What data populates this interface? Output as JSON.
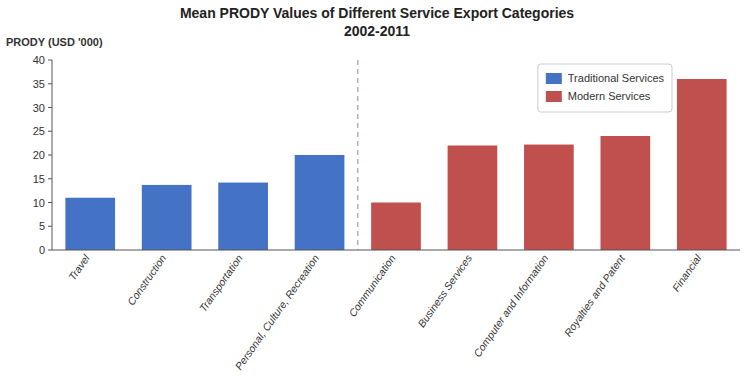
{
  "chart_data": {
    "type": "bar",
    "title": "Mean PRODY  Values of Different Service Export Categories",
    "subtitle": "2002-2011",
    "ylabel": "PRODY (USD '000)",
    "categories": [
      "Travel",
      "Construction",
      "Transportation",
      "Personal, Culture,  Recreation",
      "Communication",
      "Business Services",
      "Computer and Information",
      "Royalties and Patent",
      "Financial"
    ],
    "series": [
      {
        "name": "Traditional Services",
        "color": "#4472C4",
        "values": [
          11,
          13.7,
          14.2,
          20,
          null,
          null,
          null,
          null,
          null
        ]
      },
      {
        "name": "Modern Services",
        "color": "#C0504D",
        "values": [
          null,
          null,
          null,
          null,
          10,
          22,
          22.2,
          24,
          36
        ]
      }
    ],
    "ylim": [
      0,
      40
    ],
    "yticks": [
      0,
      5,
      10,
      15,
      20,
      25,
      30,
      35,
      40
    ],
    "grid": false,
    "legend": "upper right"
  }
}
